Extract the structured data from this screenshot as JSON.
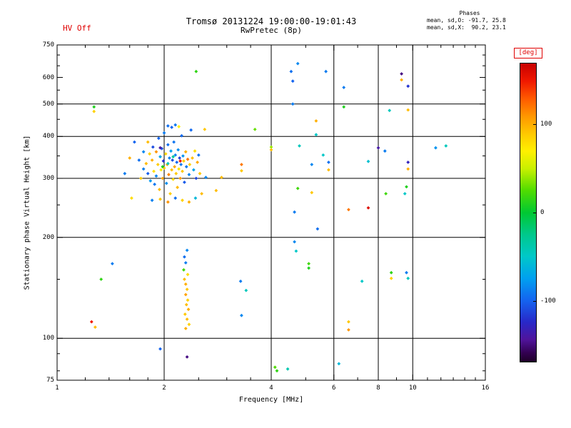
{
  "header": {
    "hv_label": "HV Off",
    "title": "Tromsø 20131224 19:00:00-19:01:43",
    "subtitle": "RwPretec (8p)",
    "phases": {
      "heading": "Phases",
      "line_o": "mean, sd,O: -91.7, 25.8",
      "line_x": "mean, sd,X:  90.2, 23.1"
    }
  },
  "axes": {
    "xlabel": "Frequency [MHz]",
    "ylabel": "Stationary phase Virtual Height [km]"
  },
  "colorbar": {
    "label": "[deg]",
    "ticks": [
      100,
      0,
      -100
    ],
    "vmin": -170,
    "vmax": 170,
    "stops": [
      [
        170,
        "#c80000"
      ],
      [
        150,
        "#f01800"
      ],
      [
        130,
        "#ff5a00"
      ],
      [
        110,
        "#ff9600"
      ],
      [
        90,
        "#ffc800"
      ],
      [
        70,
        "#fff000"
      ],
      [
        50,
        "#c8f000"
      ],
      [
        25,
        "#50dc00"
      ],
      [
        0,
        "#00c832"
      ],
      [
        -25,
        "#00c88c"
      ],
      [
        -50,
        "#00c8c8"
      ],
      [
        -75,
        "#00a0f0"
      ],
      [
        -100,
        "#1464f0"
      ],
      [
        -125,
        "#2828c8"
      ],
      [
        -145,
        "#50149b"
      ],
      [
        -160,
        "#320050"
      ],
      [
        -170,
        "#1e0028"
      ]
    ]
  },
  "chart_data": {
    "type": "scatter",
    "title": "Tromsø 20131224 19:00:00-19:01:43",
    "subtitle": "RwPretec (8p)",
    "xlabel": "Frequency [MHz]",
    "ylabel": "Stationary phase Virtual Height [km]",
    "xscale": "log",
    "yscale": "log",
    "xlim": [
      1,
      16
    ],
    "ylim": [
      75,
      750
    ],
    "xticks": [
      1,
      2,
      4,
      6,
      8,
      10,
      16
    ],
    "yticks": [
      75,
      100,
      200,
      300,
      400,
      500,
      600,
      750
    ],
    "x_minor_ticks": [
      1.2,
      1.4,
      1.6,
      1.8,
      2.5,
      3,
      3.5,
      5,
      7,
      9,
      11,
      12,
      13,
      14,
      15
    ],
    "y_minor_ticks": [
      80,
      90,
      150,
      250,
      350,
      450,
      550,
      650,
      700
    ],
    "x_gridlines": [
      2,
      4,
      6,
      8,
      10
    ],
    "y_gridlines": [
      100,
      200,
      300,
      400,
      500
    ],
    "grid": true,
    "legend": "colorbar",
    "color_axis_label": "[deg]",
    "point_format": [
      "frequency_MHz",
      "virtual_height_km",
      "phase_deg"
    ],
    "points": [
      [
        1.7,
        340,
        -95
      ],
      [
        1.72,
        300,
        88
      ],
      [
        1.75,
        320,
        -88
      ],
      [
        1.78,
        332,
        95
      ],
      [
        1.8,
        310,
        -102
      ],
      [
        1.82,
        355,
        85
      ],
      [
        1.83,
        295,
        -78
      ],
      [
        1.85,
        340,
        100
      ],
      [
        1.86,
        372,
        -110
      ],
      [
        1.87,
        315,
        78
      ],
      [
        1.88,
        288,
        -92
      ],
      [
        1.9,
        360,
        110
      ],
      [
        1.9,
        305,
        -85
      ],
      [
        1.92,
        330,
        88
      ],
      [
        1.93,
        395,
        -99
      ],
      [
        1.94,
        278,
        95
      ],
      [
        1.95,
        348,
        -70
      ],
      [
        1.96,
        318,
        72
      ],
      [
        1.97,
        368,
        -105
      ],
      [
        1.98,
        300,
        105
      ],
      [
        1.99,
        338,
        -120
      ],
      [
        2.0,
        410,
        -90
      ],
      [
        2.0,
        322,
        90
      ],
      [
        2.02,
        355,
        82
      ],
      [
        2.03,
        290,
        -82
      ],
      [
        2.04,
        330,
        98
      ],
      [
        2.05,
        378,
        -96
      ],
      [
        2.06,
        308,
        115
      ],
      [
        2.07,
        345,
        -89
      ],
      [
        2.08,
        270,
        87
      ],
      [
        2.09,
        362,
        -75
      ],
      [
        2.1,
        318,
        93
      ],
      [
        2.11,
        340,
        -108
      ],
      [
        2.12,
        298,
        80
      ],
      [
        2.13,
        385,
        -93
      ],
      [
        2.14,
        325,
        102
      ],
      [
        2.15,
        352,
        -87
      ],
      [
        2.16,
        310,
        89
      ],
      [
        2.17,
        335,
        -100
      ],
      [
        2.18,
        282,
        96
      ],
      [
        2.19,
        365,
        -83
      ],
      [
        2.2,
        320,
        75
      ],
      [
        2.21,
        345,
        -115
      ],
      [
        2.22,
        300,
        108
      ],
      [
        2.23,
        330,
        -90
      ],
      [
        2.24,
        402,
        -97
      ],
      [
        2.25,
        315,
        91
      ],
      [
        2.26,
        350,
        -80
      ],
      [
        2.27,
        338,
        84
      ],
      [
        2.28,
        292,
        -104
      ],
      [
        2.3,
        360,
        99
      ],
      [
        2.31,
        325,
        -91
      ],
      [
        2.33,
        342,
        120
      ],
      [
        2.35,
        308,
        -86
      ],
      [
        2.36,
        330,
        86
      ],
      [
        2.38,
        418,
        -98
      ],
      [
        2.4,
        345,
        94
      ],
      [
        2.42,
        318,
        -72
      ],
      [
        2.44,
        362,
        79
      ],
      [
        2.46,
        300,
        -112
      ],
      [
        2.48,
        335,
        103
      ],
      [
        2.5,
        352,
        -94
      ],
      [
        2.52,
        310,
        90
      ],
      [
        2.05,
        332,
        -45
      ],
      [
        2.12,
        348,
        -30
      ],
      [
        1.98,
        325,
        10
      ],
      [
        2.22,
        338,
        150
      ],
      [
        1.95,
        370,
        -140
      ],
      [
        1.55,
        310,
        -90
      ],
      [
        1.6,
        345,
        100
      ],
      [
        1.62,
        262,
        80
      ],
      [
        1.65,
        385,
        -100
      ],
      [
        2.6,
        420,
        90
      ],
      [
        2.62,
        302,
        -85
      ],
      [
        2.55,
        270,
        95
      ],
      [
        2.45,
        262,
        -60
      ],
      [
        2.35,
        255,
        100
      ],
      [
        2.25,
        258,
        85
      ],
      [
        2.15,
        262,
        -95
      ],
      [
        2.05,
        255,
        110
      ],
      [
        1.95,
        260,
        90
      ],
      [
        1.85,
        258,
        -88
      ],
      [
        2.05,
        430,
        -95
      ],
      [
        2.1,
        426,
        -100
      ],
      [
        2.15,
        433,
        -92
      ],
      [
        2.2,
        428,
        70
      ],
      [
        1.8,
        385,
        95
      ],
      [
        1.75,
        360,
        -85
      ],
      [
        2.28,
        150,
        95
      ],
      [
        2.3,
        145,
        100
      ],
      [
        2.32,
        140,
        90
      ],
      [
        2.3,
        135,
        105
      ],
      [
        2.33,
        130,
        85
      ],
      [
        2.31,
        126,
        95
      ],
      [
        2.34,
        122,
        100
      ],
      [
        2.29,
        118,
        90
      ],
      [
        2.32,
        114,
        95
      ],
      [
        2.35,
        110,
        85
      ],
      [
        2.3,
        107,
        100
      ],
      [
        2.33,
        155,
        80
      ],
      [
        2.27,
        160,
        20
      ],
      [
        2.3,
        168,
        -90
      ],
      [
        2.28,
        175,
        -95
      ],
      [
        2.32,
        183,
        -85
      ],
      [
        1.27,
        490,
        10
      ],
      [
        1.27,
        475,
        85
      ],
      [
        1.43,
        167,
        -90
      ],
      [
        1.33,
        150,
        15
      ],
      [
        1.25,
        112,
        150
      ],
      [
        1.28,
        108,
        95
      ],
      [
        1.95,
        93,
        -100
      ],
      [
        2.32,
        88,
        -150
      ],
      [
        4.1,
        82,
        25
      ],
      [
        4.15,
        80,
        15
      ],
      [
        4.45,
        81,
        -40
      ],
      [
        6.2,
        84,
        -60
      ],
      [
        2.46,
        625,
        15
      ],
      [
        2.8,
        276,
        95
      ],
      [
        2.9,
        302,
        95
      ],
      [
        3.3,
        330,
        120
      ],
      [
        3.3,
        316,
        90
      ],
      [
        3.6,
        420,
        30
      ],
      [
        3.28,
        148,
        -90
      ],
      [
        3.4,
        139,
        -45
      ],
      [
        3.3,
        117,
        -85
      ],
      [
        4.0,
        372,
        40
      ],
      [
        4.0,
        365,
        95
      ],
      [
        4.55,
        625,
        -95
      ],
      [
        4.6,
        585,
        -100
      ],
      [
        4.6,
        500,
        -90
      ],
      [
        4.65,
        238,
        -90
      ],
      [
        4.65,
        194,
        -85
      ],
      [
        4.7,
        182,
        -50
      ],
      [
        4.75,
        660,
        -85
      ],
      [
        4.75,
        280,
        20
      ],
      [
        4.8,
        375,
        -45
      ],
      [
        5.1,
        167,
        20
      ],
      [
        5.1,
        162,
        10
      ],
      [
        5.2,
        272,
        90
      ],
      [
        5.2,
        330,
        -85
      ],
      [
        5.35,
        445,
        100
      ],
      [
        5.35,
        405,
        -50
      ],
      [
        5.4,
        212,
        -95
      ],
      [
        5.6,
        352,
        -50
      ],
      [
        5.7,
        625,
        -90
      ],
      [
        5.8,
        318,
        95
      ],
      [
        5.8,
        335,
        -95
      ],
      [
        6.4,
        560,
        -90
      ],
      [
        6.4,
        490,
        10
      ],
      [
        6.6,
        242,
        120
      ],
      [
        6.6,
        112,
        90
      ],
      [
        6.6,
        106,
        110
      ],
      [
        7.2,
        148,
        -50
      ],
      [
        7.5,
        245,
        160
      ],
      [
        7.5,
        337,
        -55
      ],
      [
        8.0,
        370,
        -140
      ],
      [
        8.35,
        362,
        -90
      ],
      [
        8.4,
        270,
        20
      ],
      [
        8.6,
        478,
        -45
      ],
      [
        8.7,
        157,
        15
      ],
      [
        8.7,
        151,
        85
      ],
      [
        9.3,
        615,
        -150
      ],
      [
        9.3,
        590,
        100
      ],
      [
        9.5,
        270,
        -50
      ],
      [
        9.6,
        283,
        10
      ],
      [
        9.6,
        157,
        -90
      ],
      [
        9.7,
        565,
        -120
      ],
      [
        9.7,
        480,
        95
      ],
      [
        9.7,
        335,
        -130
      ],
      [
        9.7,
        320,
        100
      ],
      [
        9.7,
        151,
        -45
      ],
      [
        11.6,
        370,
        -80
      ],
      [
        12.4,
        375,
        -45
      ]
    ]
  }
}
